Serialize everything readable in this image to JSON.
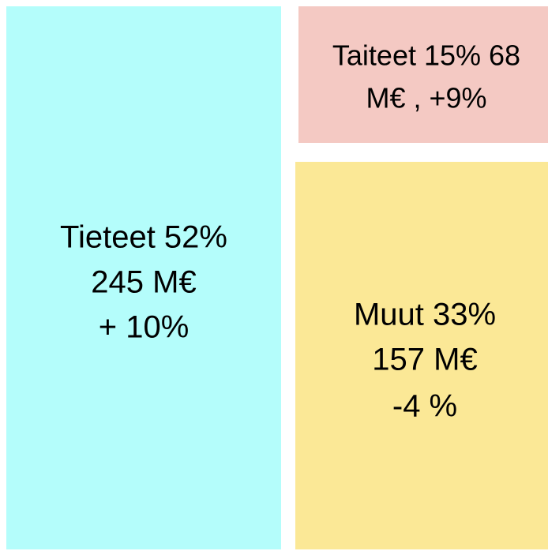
{
  "nodes": [
    {
      "lines": [
        "Tieteet 52%",
        "245 M€",
        "+ 10%"
      ]
    },
    {
      "lines": [
        "Taiteet 15% 68",
        "M€ , +9%"
      ]
    },
    {
      "lines": [
        "Muut 33%",
        "157 M€",
        "-4 %"
      ]
    }
  ]
}
